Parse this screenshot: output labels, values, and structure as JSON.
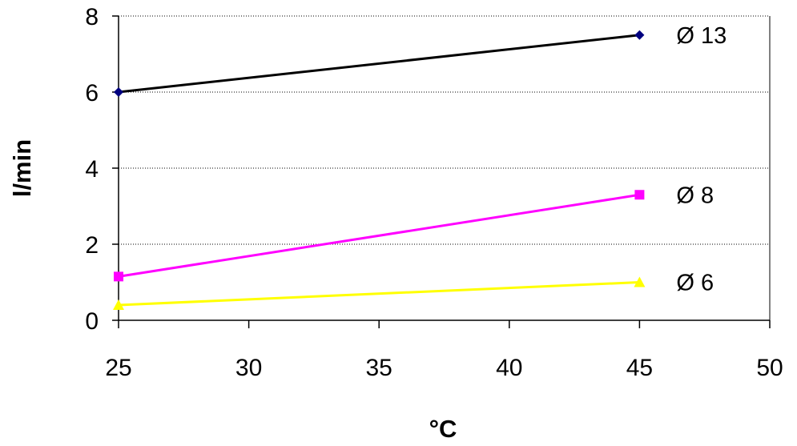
{
  "chart_data": {
    "type": "line",
    "xlabel": "°C",
    "ylabel": "l/min",
    "xlim": [
      25,
      50
    ],
    "ylim": [
      0,
      8
    ],
    "x_ticks": [
      25,
      30,
      35,
      40,
      45,
      50
    ],
    "y_ticks": [
      0,
      2,
      4,
      6,
      8
    ],
    "grid": "horizontal dotted",
    "legend": "direct labels at line ends",
    "series": [
      {
        "name": "Ø 13",
        "x": [
          25,
          45
        ],
        "y": [
          6.0,
          7.5
        ],
        "color": "#000000",
        "marker": "diamond",
        "marker_color": "#000080"
      },
      {
        "name": "Ø 8",
        "x": [
          25,
          45
        ],
        "y": [
          1.15,
          3.3
        ],
        "color": "#ff00ff",
        "marker": "square",
        "marker_color": "#ff00ff"
      },
      {
        "name": "Ø 6",
        "x": [
          25,
          45
        ],
        "y": [
          0.4,
          1.0
        ],
        "color": "#ffff00",
        "marker": "triangle",
        "marker_color": "#ffff00"
      }
    ]
  }
}
